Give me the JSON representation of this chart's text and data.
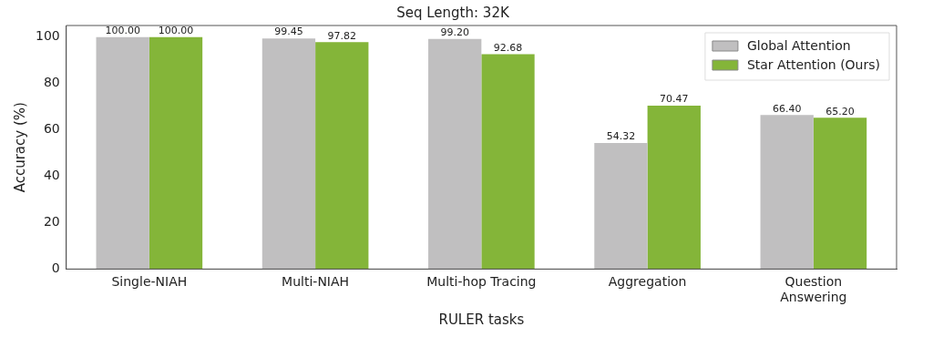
{
  "chart_data": {
    "type": "bar",
    "title": "Seq Length: 32K",
    "xlabel": "RULER tasks",
    "ylabel": "Accuracy (%)",
    "categories": [
      "Single-NIAH",
      "Multi-NIAH",
      "Multi-hop Tracing",
      "Aggregation",
      "Question\nAnswering"
    ],
    "series": [
      {
        "name": "Global Attention",
        "color": "#c0bfc0",
        "values": [
          100.0,
          99.45,
          99.2,
          54.32,
          66.4
        ],
        "value_labels": [
          "100.00",
          "99.45",
          "99.20",
          "54.32",
          "66.40"
        ]
      },
      {
        "name": "Star Attention (Ours)",
        "color": "#84b539",
        "values": [
          100.0,
          97.82,
          92.68,
          70.47,
          65.2
        ],
        "value_labels": [
          "100.00",
          "97.82",
          "92.68",
          "70.47",
          "65.20"
        ]
      }
    ],
    "ylim": [
      0,
      105
    ],
    "yticks": [
      0,
      20,
      40,
      60,
      80,
      100
    ],
    "grid": false,
    "legend": "top right"
  }
}
